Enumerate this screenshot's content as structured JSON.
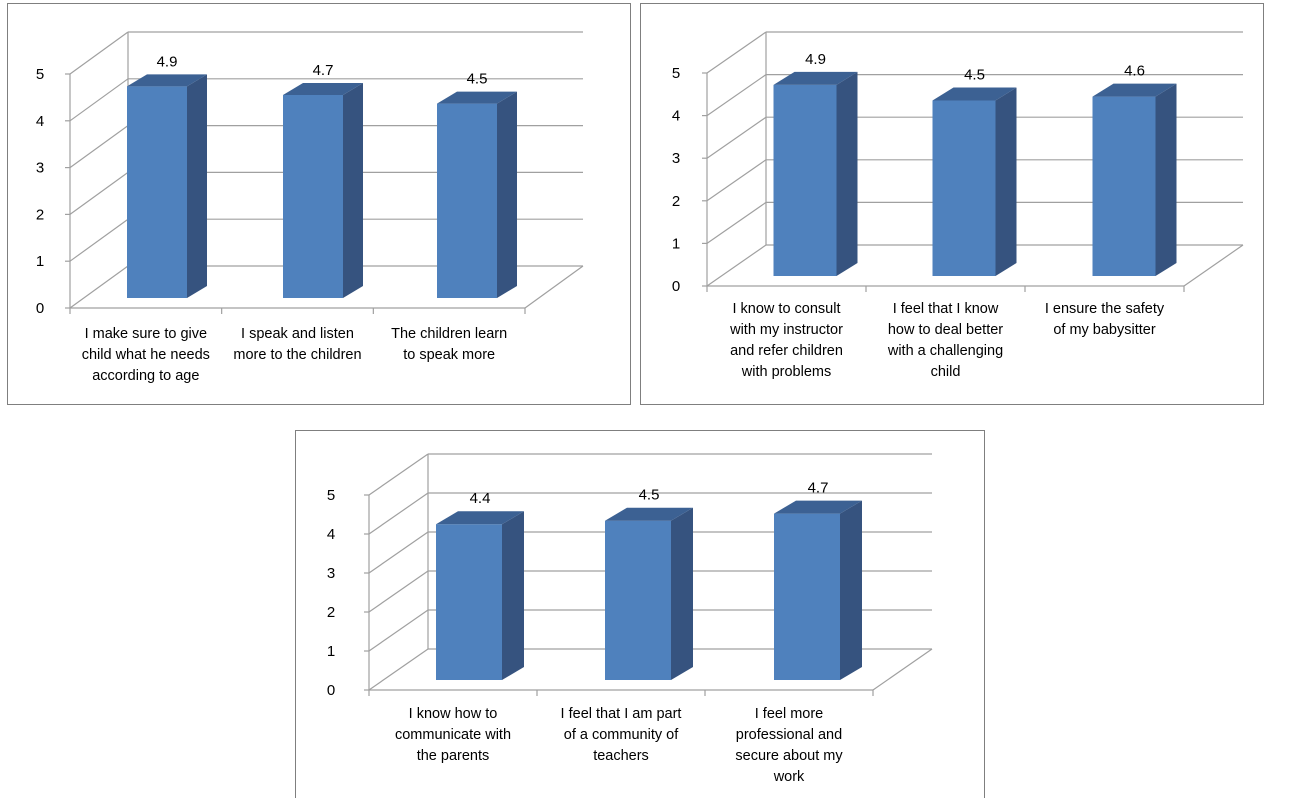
{
  "colors": {
    "bar_front": "#4f81bd",
    "bar_side": "#36537f",
    "bar_top": "#3c6193",
    "grid": "#a0a0a0",
    "border": "#7f7f7f"
  },
  "chart_data": [
    {
      "type": "bar",
      "categories": [
        "I make sure to give child what he needs according to age",
        "I speak and listen more to the children",
        "The children learn to speak more"
      ],
      "category_lines": [
        [
          "I make sure to give",
          "child what he needs",
          "according to age"
        ],
        [
          "I speak and listen",
          "more to the children"
        ],
        [
          "The children learn",
          "to speak more"
        ]
      ],
      "values": [
        4.9,
        4.7,
        4.5
      ],
      "data_labels": [
        "4.9",
        "4.7",
        "4.5"
      ],
      "y_ticks": [
        "0",
        "1",
        "2",
        "3",
        "4",
        "5"
      ],
      "ylim": [
        0,
        5
      ],
      "grid": true,
      "legend": "none"
    },
    {
      "type": "bar",
      "categories": [
        "I know to consult with my instructor and refer children with problems",
        "I feel that I know how to deal better with a challenging child",
        "I ensure the safety of my babysitter"
      ],
      "category_lines": [
        [
          "I know to consult",
          "with my instructor",
          "and refer children",
          "with problems"
        ],
        [
          "I feel that I know",
          "how to deal better",
          "with a challenging",
          "child"
        ],
        [
          "I ensure the safety",
          "of my babysitter"
        ]
      ],
      "values": [
        4.9,
        4.5,
        4.6
      ],
      "data_labels": [
        "4.9",
        "4.5",
        "4.6"
      ],
      "y_ticks": [
        "0",
        "1",
        "2",
        "3",
        "4",
        "5"
      ],
      "ylim": [
        0,
        5
      ],
      "grid": true,
      "legend": "none"
    },
    {
      "type": "bar",
      "categories": [
        "I know how to communicate with the parents",
        "I feel that I am part of a community of teachers",
        "I feel more professional and secure about my work"
      ],
      "category_lines": [
        [
          "I know how to",
          "communicate with",
          "the parents"
        ],
        [
          "I feel that I am part",
          "of a community of",
          "teachers"
        ],
        [
          "I feel more",
          "professional and",
          "secure about my",
          "work"
        ]
      ],
      "values": [
        4.4,
        4.5,
        4.7
      ],
      "data_labels": [
        "4.4",
        "4.5",
        "4.7"
      ],
      "y_ticks": [
        "0",
        "1",
        "2",
        "3",
        "4",
        "5"
      ],
      "ylim": [
        0,
        5
      ],
      "grid": true,
      "legend": "none"
    }
  ]
}
